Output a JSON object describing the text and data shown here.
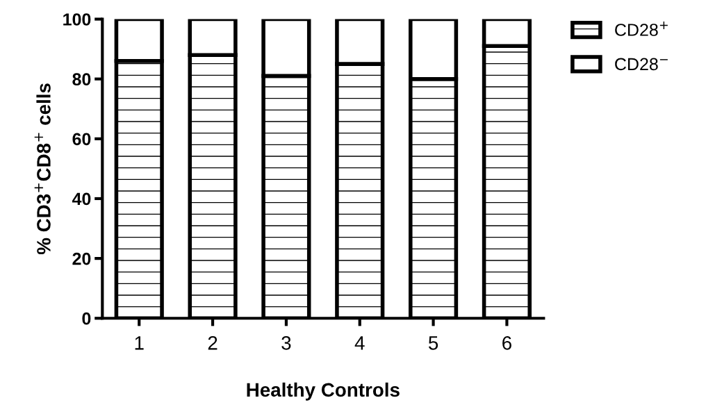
{
  "chart_data": {
    "type": "bar",
    "stacked": true,
    "xlabel": "Healthy Controls",
    "ylabel": "% CD3$^{+}$CD8$^{+}$ cells",
    "categories": [
      "1",
      "2",
      "3",
      "4",
      "5",
      "6"
    ],
    "series": [
      {
        "name": "CD28$^{+}$",
        "color": "#000000",
        "values": [
          86,
          88,
          81,
          85,
          80,
          91
        ]
      },
      {
        "name": "CD28$^{−}$",
        "color": "#ffffff",
        "values": [
          14,
          12,
          19,
          15,
          20,
          9
        ]
      }
    ],
    "ylim": [
      0,
      100
    ],
    "yticks": [
      0,
      20,
      40,
      60,
      80,
      100
    ],
    "grid": false,
    "legend": "top right"
  }
}
